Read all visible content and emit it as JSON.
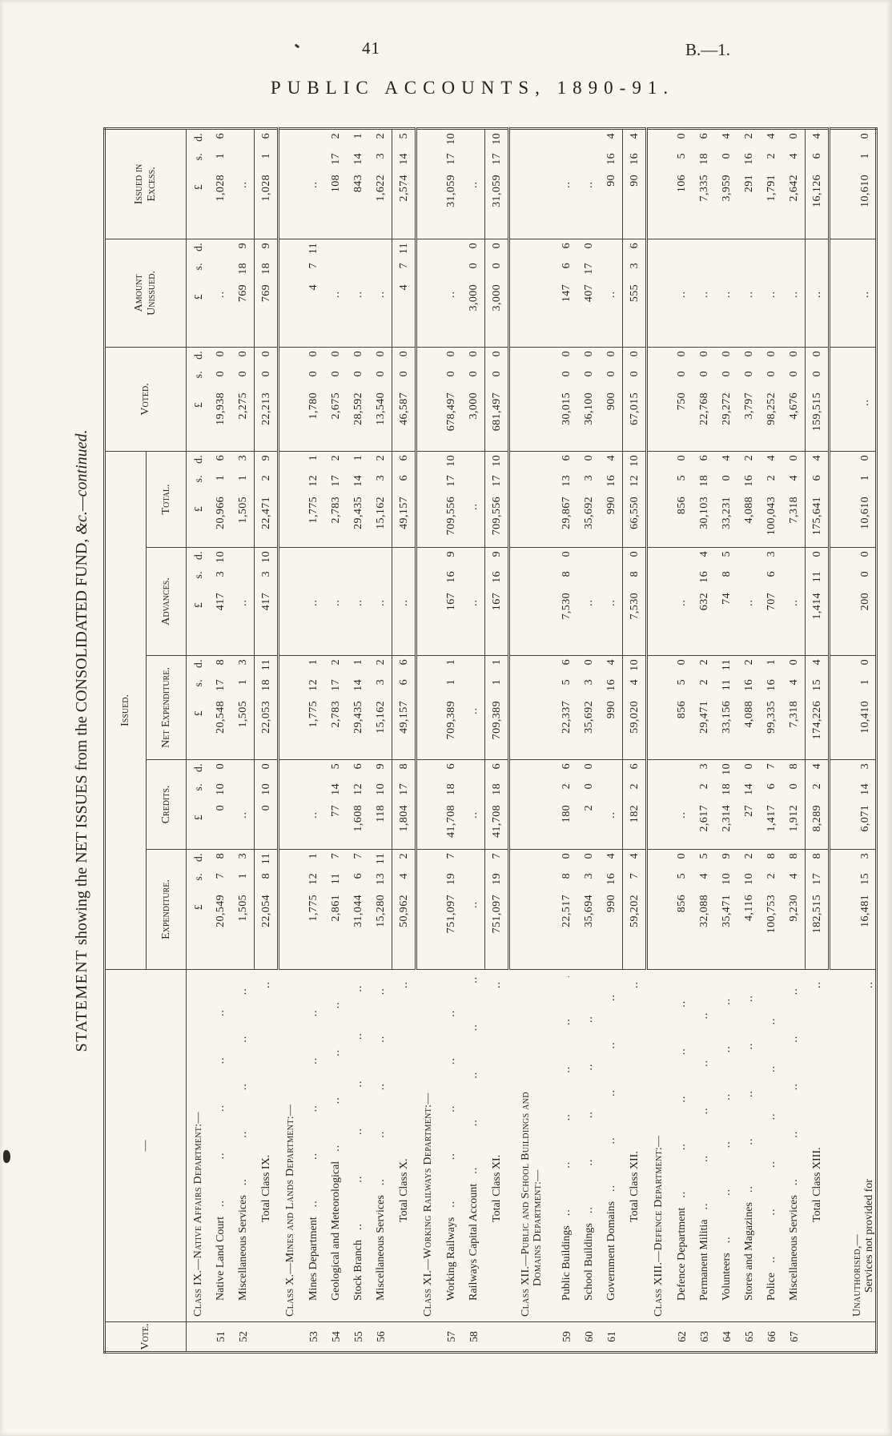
{
  "page": {
    "number": "41",
    "docref": "B.—1.",
    "title": "PUBLIC ACCOUNTS, 1890-91."
  },
  "caption": {
    "lead": "STATEMENT",
    "main": " showing the NET ISSUES from the CONSOLIDATED FUND, ",
    "tail": "&c.—continued."
  },
  "decorations": {
    "blank": "..",
    "leader": ".."
  },
  "table": {
    "vote_header": "Vote.",
    "stub_header_dash": "—",
    "issued_spanner": "Issued.",
    "columns": [
      "Expenditure.",
      "Credits.",
      "Net Expenditure.",
      "Advances.",
      "Total.",
      "Voted.",
      "Amount Unissued.",
      "Issued in Excess."
    ],
    "column_keys": [
      "expenditure",
      "credits",
      "net-expenditure",
      "advances",
      "total",
      "voted",
      "amount-unissued",
      "issued-in-excess"
    ],
    "currency_header": [
      "£",
      "s.",
      "d."
    ],
    "rows": [
      {
        "t": "h",
        "stub": "Class IX.—Native Affairs Department:—",
        "cur": true
      },
      {
        "t": "s",
        "vote": "51",
        "stub": "Native Land Court",
        "c": [
          "20,549 7 8",
          "0 10 0",
          "20,548 17 8",
          "417 3 10",
          "20,966 1 6",
          "19,938 0 0",
          "",
          "1,028 1 6"
        ]
      },
      {
        "t": "s",
        "vote": "52",
        "stub": "Miscellaneous Services",
        "c": [
          "1,505 1 3",
          "",
          "1,505 1 3",
          "",
          "1,505 1 3",
          "2,275 0 0",
          "769 18 9",
          ""
        ]
      },
      {
        "t": "t",
        "stub": "Total Class IX.",
        "c": [
          "22,054 8 11",
          "0 10 0",
          "22,053 18 11",
          "417 3 10",
          "22,471 2 9",
          "22,213 0 0",
          "769 18 9",
          "1,028 1 6"
        ]
      },
      {
        "t": "h",
        "stub": "Class X.—Mines and Lands Department:—"
      },
      {
        "t": "s",
        "vote": "53",
        "stub": "Mines Department",
        "c": [
          "1,775 12 1",
          "",
          "1,775 12 1",
          "",
          "1,775 12 1",
          "1,780 0 0",
          "4 7 11",
          ""
        ]
      },
      {
        "t": "s",
        "vote": "54",
        "stub": "Geological and Meteorological",
        "c": [
          "2,861 11 7",
          "77 14 5",
          "2,783 17 2",
          "",
          "2,783 17 2",
          "2,675 0 0",
          "",
          "108 17 2"
        ]
      },
      {
        "t": "s",
        "vote": "55",
        "stub": "Stock Branch",
        "c": [
          "31,044 6 7",
          "1,608 12 6",
          "29,435 14 1",
          "",
          "29,435 14 1",
          "28,592 0 0",
          "",
          "843 14 1"
        ]
      },
      {
        "t": "s",
        "vote": "56",
        "stub": "Miscellaneous Services",
        "c": [
          "15,280 13 11",
          "118 10 9",
          "15,162 3 2",
          "",
          "15,162 3 2",
          "13,540 0 0",
          "",
          "1,622 3 2"
        ]
      },
      {
        "t": "t",
        "stub": "Total Class X.",
        "c": [
          "50,962 4 2",
          "1,804 17 8",
          "49,157 6 6",
          "",
          "49,157 6 6",
          "46,587 0 0",
          "4 7 11",
          "2,574 14 5"
        ]
      },
      {
        "t": "h",
        "stub": "Class XI.—Working Railways Department:—"
      },
      {
        "t": "s",
        "vote": "57",
        "stub": "Working Railways",
        "c": [
          "751,097 19 7",
          "41,708 18 6",
          "709,389 1 1",
          "167 16 9",
          "709,556 17 10",
          "678,497 0 0",
          "",
          "31,059 17 10"
        ]
      },
      {
        "t": "s",
        "vote": "58",
        "stub": "Railways Capital Account",
        "c": [
          "",
          "",
          "",
          "",
          "",
          "3,000 0 0",
          "3,000 0 0",
          ""
        ]
      },
      {
        "t": "t",
        "stub": "Total Class XI.",
        "c": [
          "751,097 19 7",
          "41,708 18 6",
          "709,389 1 1",
          "167 16 9",
          "709,556 17 10",
          "681,497 0 0",
          "3,000 0 0",
          "31,059 17 10"
        ]
      },
      {
        "t": "h2",
        "stub": [
          "Class XII.—Public and School Buildings and",
          "Domains Department:—"
        ]
      },
      {
        "t": "s",
        "vote": "59",
        "stub": "Public Buildings",
        "c": [
          "22,517 8 0",
          "180 2 6",
          "22,337 5 6",
          "7,530 8 0",
          "29,867 13 6",
          "30,015 0 0",
          "147 6 6",
          ""
        ]
      },
      {
        "t": "s",
        "vote": "60",
        "stub": "School Buildings",
        "c": [
          "35,694 3 0",
          "2 0 0",
          "35,692 3 0",
          "",
          "35,692 3 0",
          "36,100 0 0",
          "407 17 0",
          ""
        ]
      },
      {
        "t": "s",
        "vote": "61",
        "stub": "Government Domains",
        "c": [
          "990 16 4",
          "",
          "990 16 4",
          "",
          "990 16 4",
          "900 0 0",
          "",
          "90 16 4"
        ]
      },
      {
        "t": "t",
        "stub": "Total Class XII.",
        "c": [
          "59,202 7 4",
          "182 2 6",
          "59,020 4 10",
          "7,530 8 0",
          "66,550 12 10",
          "67,015 0 0",
          "555 3 6",
          "90 16 4"
        ]
      },
      {
        "t": "h",
        "stub": "Class XIII.—Defence Department:—"
      },
      {
        "t": "s",
        "vote": "62",
        "stub": "Defence Department",
        "c": [
          "856 5 0",
          "",
          "856 5 0",
          "",
          "856 5 0",
          "750 0 0",
          "",
          "106 5 0"
        ]
      },
      {
        "t": "s",
        "vote": "63",
        "stub": "Permanent Militia",
        "c": [
          "32,088 4 5",
          "2,617 2 3",
          "29,471 2 2",
          "632 16 4",
          "30,103 18 6",
          "22,768 0 0",
          "",
          "7,335 18 6"
        ]
      },
      {
        "t": "s",
        "vote": "64",
        "stub": "Volunteers",
        "c": [
          "35,471 10 9",
          "2,314 18 10",
          "33,156 11 11",
          "74 8 5",
          "33,231 0 4",
          "29,272 0 0",
          "",
          "3,959 0 4"
        ]
      },
      {
        "t": "s",
        "vote": "65",
        "stub": "Stores and Magazines",
        "c": [
          "4,116 10 2",
          "27 14 0",
          "4,088 16 2",
          "",
          "4,088 16 2",
          "3,797 0 0",
          "",
          "291 16 2"
        ]
      },
      {
        "t": "s",
        "vote": "66",
        "stub": "Police",
        "c": [
          "100,753 2 8",
          "1,417 6 7",
          "99,335 16 1",
          "707 6 3",
          "100,043 2 4",
          "98,252 0 0",
          "",
          "1,791 2 4"
        ]
      },
      {
        "t": "s",
        "vote": "67",
        "stub": "Miscellaneous Services",
        "c": [
          "9,230 4 8",
          "1,912 0 8",
          "7,318 4 0",
          "",
          "7,318 4 0",
          "4,676 0 0",
          "",
          "2,642 4 0"
        ]
      },
      {
        "t": "t",
        "stub": "Total Class XIII.",
        "c": [
          "182,515 17 8",
          "8,289 2 4",
          "174,226 15 4",
          "1,414 11 0",
          "175,641 6 4",
          "159,515 0 0",
          "",
          "16,126 6 4"
        ]
      },
      {
        "t": "u",
        "stub": [
          "Unauthorised,—",
          "Services not provided for"
        ],
        "c": [
          "16,481 15 3",
          "6,071 14 3",
          "10,410 1 0",
          "200 0 0",
          "10,610 1 0",
          "",
          "",
          "10,610 1 0"
        ]
      }
    ]
  }
}
